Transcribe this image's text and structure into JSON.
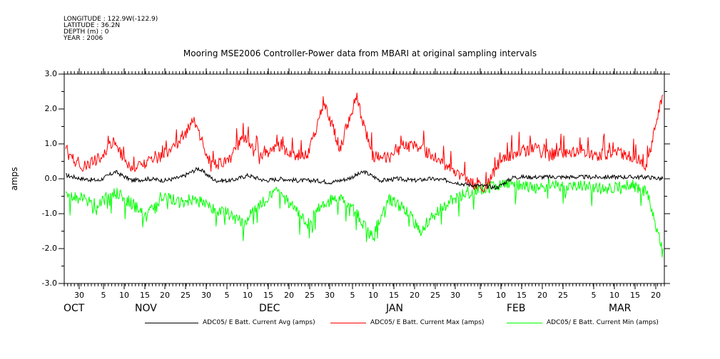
{
  "header": {
    "longitude": "LONGITUDE : 122.9W(-122.9)",
    "latitude": "LATITUDE : 36.2N",
    "depth": "DEPTH (m) : 0",
    "year": "YEAR : 2006"
  },
  "chart_data": {
    "type": "line",
    "title": "Mooring MSE2006 Controller-Power data from MBARI at original sampling intervals",
    "ylabel": "amps",
    "xlabel": "",
    "ylim": [
      -3.0,
      3.0
    ],
    "yticks": [
      "3.0",
      "2.0",
      "1.0",
      "0.0",
      "-1.0",
      "-2.0",
      "-3.0"
    ],
    "xticks": [
      "30",
      "5",
      "10",
      "15",
      "20",
      "25",
      "30",
      "5",
      "10",
      "15",
      "20",
      "25",
      "30",
      "5",
      "10",
      "15",
      "20",
      "25",
      "30",
      "5",
      "10",
      "15",
      "20",
      "25",
      "5",
      "10",
      "15",
      "20"
    ],
    "months": [
      "OCT",
      "NOV",
      "DEC",
      "JAN",
      "FEB",
      "MAR"
    ],
    "grid": false,
    "legend_position": "bottom",
    "series": [
      {
        "name": "ADC05/ E Batt. Current Avg (amps)",
        "color": "#000000",
        "values": [
          0.1,
          0.0,
          -0.05,
          0.2,
          -0.05,
          0.0,
          -0.05,
          0.05,
          0.3,
          -0.05,
          -0.05,
          0.1,
          -0.05,
          0.0,
          -0.05,
          -0.05,
          -0.1,
          0.0,
          0.2,
          -0.05,
          0.0,
          -0.05,
          0.0,
          -0.05,
          -0.15,
          -0.2,
          -0.25,
          0.05,
          0.05,
          0.05,
          0.05,
          0.05,
          0.05,
          0.05,
          0.05,
          0.05,
          0.0
        ]
      },
      {
        "name": "ADC05/ E Batt. Current Max (amps)",
        "color": "#ff0000",
        "values": [
          0.7,
          0.3,
          0.5,
          1.0,
          0.2,
          0.4,
          0.6,
          1.0,
          1.6,
          0.3,
          0.4,
          1.1,
          0.5,
          0.9,
          0.6,
          0.6,
          2.1,
          0.8,
          2.3,
          0.6,
          0.5,
          0.9,
          0.8,
          0.5,
          0.2,
          -0.2,
          -0.3,
          0.5,
          0.7,
          0.8,
          0.6,
          0.7,
          0.7,
          0.6,
          0.7,
          0.6,
          0.3,
          2.4
        ]
      },
      {
        "name": "ADC05/ E Batt. Current Min (amps)",
        "color": "#00ff00",
        "values": [
          -0.4,
          -0.5,
          -0.7,
          -0.3,
          -0.6,
          -1.0,
          -0.4,
          -0.6,
          -0.5,
          -0.8,
          -0.9,
          -1.2,
          -0.7,
          -0.3,
          -0.7,
          -1.2,
          -0.6,
          -0.5,
          -0.9,
          -1.6,
          -0.5,
          -0.8,
          -1.4,
          -0.9,
          -0.5,
          -0.3,
          -0.2,
          -0.1,
          -0.1,
          -0.2,
          -0.1,
          -0.2,
          -0.1,
          -0.2,
          -0.2,
          -0.1,
          -0.3,
          -2.0
        ]
      }
    ]
  }
}
